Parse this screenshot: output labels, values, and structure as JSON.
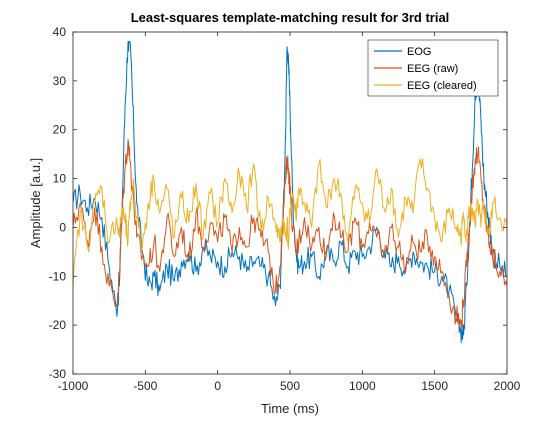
{
  "chart_data": {
    "type": "line",
    "title": "Least-squares template-matching result for 3rd trial",
    "xlabel": "Time (ms)",
    "ylabel": "Amplitude [a.u.]",
    "xlim": [
      -1000,
      2000
    ],
    "ylim": [
      -30,
      40
    ],
    "xticks": [
      -1000,
      -500,
      0,
      500,
      1000,
      1500,
      2000
    ],
    "yticks": [
      -30,
      -20,
      -10,
      0,
      10,
      20,
      30,
      40
    ],
    "xtick_labels": [
      "-1000",
      "-500",
      "0",
      "500",
      "1000",
      "1500",
      "2000"
    ],
    "ytick_labels": [
      "-30",
      "-20",
      "-10",
      "0",
      "10",
      "20",
      "30",
      "40"
    ],
    "grid": false,
    "legend_position": "top-right",
    "series": [
      {
        "name": "EOG",
        "color": "#0072BD",
        "x": [
          -1000,
          -950,
          -900,
          -850,
          -800,
          -750,
          -700,
          -680,
          -660,
          -640,
          -620,
          -600,
          -580,
          -560,
          -520,
          -480,
          -440,
          -400,
          -350,
          -300,
          -250,
          -200,
          -150,
          -100,
          -50,
          0,
          50,
          100,
          150,
          200,
          250,
          300,
          350,
          400,
          430,
          450,
          470,
          480,
          490,
          500,
          520,
          540,
          560,
          600,
          650,
          700,
          750,
          800,
          850,
          900,
          950,
          1000,
          1050,
          1100,
          1150,
          1200,
          1250,
          1300,
          1350,
          1400,
          1450,
          1500,
          1550,
          1600,
          1650,
          1680,
          1700,
          1720,
          1740,
          1760,
          1780,
          1800,
          1820,
          1840,
          1860,
          1880,
          1900,
          1950,
          2000
        ],
        "y": [
          5,
          7,
          4,
          6,
          2,
          -8,
          -17,
          -12,
          5,
          25,
          38,
          35,
          20,
          5,
          -5,
          -12,
          -10,
          -13,
          -8,
          -11,
          -7,
          -5,
          -9,
          -4,
          -6,
          -7,
          -8,
          -5,
          -6,
          -9,
          -7,
          -8,
          -10,
          -16,
          -12,
          0,
          20,
          37,
          34,
          25,
          5,
          -5,
          -8,
          -7,
          -6,
          -10,
          -5,
          -7,
          -3,
          -8,
          -5,
          -6,
          -4,
          0,
          -5,
          -8,
          -6,
          -9,
          -5,
          -7,
          -8,
          -9,
          -10,
          -13,
          -19,
          -21,
          -22,
          -12,
          0,
          12,
          28,
          30,
          22,
          10,
          5,
          0,
          -5,
          -8,
          -10
        ]
      },
      {
        "name": "EEG (raw)",
        "color": "#D95319",
        "x": [
          -1000,
          -950,
          -900,
          -850,
          -800,
          -750,
          -700,
          -680,
          -660,
          -640,
          -620,
          -600,
          -580,
          -560,
          -520,
          -480,
          -440,
          -400,
          -350,
          -300,
          -250,
          -200,
          -150,
          -100,
          -50,
          0,
          50,
          100,
          150,
          200,
          250,
          300,
          350,
          400,
          430,
          450,
          470,
          480,
          490,
          500,
          520,
          540,
          560,
          600,
          650,
          700,
          750,
          800,
          850,
          900,
          950,
          1000,
          1050,
          1100,
          1150,
          1200,
          1250,
          1300,
          1350,
          1400,
          1450,
          1500,
          1550,
          1600,
          1650,
          1680,
          1700,
          1720,
          1740,
          1760,
          1780,
          1800,
          1820,
          1840,
          1860,
          1880,
          1900,
          1950,
          2000
        ],
        "y": [
          0,
          5,
          -3,
          4,
          -4,
          -12,
          -16,
          -10,
          3,
          12,
          18,
          12,
          5,
          -2,
          -6,
          -8,
          -3,
          -9,
          2,
          -6,
          0,
          -7,
          3,
          -4,
          1,
          -3,
          2,
          -5,
          0,
          -4,
          2,
          -2,
          -5,
          -13,
          -8,
          2,
          10,
          14,
          12,
          8,
          0,
          -5,
          -3,
          2,
          -4,
          0,
          -6,
          3,
          -2,
          -5,
          2,
          -4,
          1,
          -2,
          -6,
          0,
          -4,
          -8,
          -3,
          -5,
          -2,
          -6,
          -9,
          -14,
          -18,
          -20,
          -15,
          -8,
          0,
          8,
          14,
          15,
          10,
          4,
          0,
          -3,
          -6,
          -9,
          -12
        ]
      },
      {
        "name": "EEG (cleared)",
        "color": "#EDB120",
        "x": [
          -1000,
          -950,
          -900,
          -850,
          -800,
          -750,
          -700,
          -680,
          -660,
          -640,
          -620,
          -600,
          -580,
          -560,
          -520,
          -480,
          -440,
          -400,
          -350,
          -300,
          -250,
          -200,
          -150,
          -100,
          -50,
          0,
          50,
          100,
          150,
          200,
          250,
          300,
          350,
          400,
          430,
          450,
          470,
          480,
          490,
          500,
          520,
          540,
          560,
          600,
          650,
          700,
          750,
          800,
          850,
          900,
          950,
          1000,
          1050,
          1100,
          1150,
          1200,
          1250,
          1300,
          1350,
          1400,
          1450,
          1500,
          1550,
          1600,
          1650,
          1680,
          1700,
          1720,
          1740,
          1760,
          1780,
          1800,
          1820,
          1840,
          1860,
          1880,
          1900,
          1950,
          2000
        ],
        "y": [
          -12,
          3,
          -4,
          5,
          8,
          -3,
          2,
          -2,
          4,
          1,
          -3,
          6,
          9,
          2,
          -4,
          5,
          10,
          3,
          8,
          -2,
          6,
          1,
          9,
          -2,
          7,
          1,
          10,
          3,
          11,
          4,
          13,
          -1,
          6,
          1,
          -3,
          2,
          -2,
          1,
          -4,
          3,
          7,
          2,
          8,
          5,
          0,
          13,
          4,
          10,
          7,
          -3,
          8,
          5,
          1,
          12,
          4,
          8,
          -2,
          6,
          3,
          14,
          8,
          2,
          -3,
          4,
          0,
          -2,
          2,
          -1,
          3,
          4,
          0,
          5,
          0,
          4,
          1,
          -2,
          5,
          2,
          0
        ]
      }
    ]
  }
}
